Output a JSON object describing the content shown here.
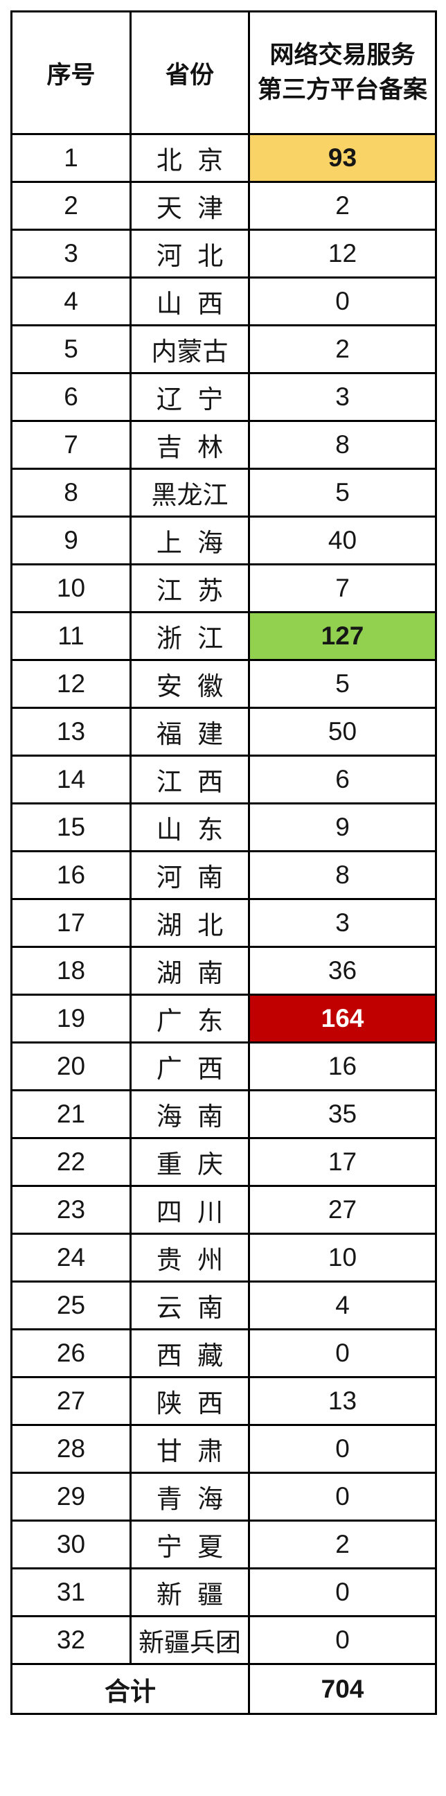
{
  "colors": {
    "yellow": "#FAD366",
    "green": "#92D050",
    "red": "#C00000",
    "red_text": "#FFFFFF",
    "border": "#000000",
    "text": "#161616"
  },
  "table": {
    "header": {
      "seq": "序号",
      "province": "省份",
      "value": "网络交易服务\n第三方平台备案"
    },
    "rows": [
      {
        "seq": "1",
        "province": "北 京",
        "value": "93",
        "highlight": "yellow"
      },
      {
        "seq": "2",
        "province": "天 津",
        "value": "2",
        "highlight": null
      },
      {
        "seq": "3",
        "province": "河 北",
        "value": "12",
        "highlight": null
      },
      {
        "seq": "4",
        "province": "山 西",
        "value": "0",
        "highlight": null
      },
      {
        "seq": "5",
        "province": "内蒙古",
        "value": "2",
        "highlight": null
      },
      {
        "seq": "6",
        "province": "辽 宁",
        "value": "3",
        "highlight": null
      },
      {
        "seq": "7",
        "province": "吉 林",
        "value": "8",
        "highlight": null
      },
      {
        "seq": "8",
        "province": "黑龙江",
        "value": "5",
        "highlight": null
      },
      {
        "seq": "9",
        "province": "上 海",
        "value": "40",
        "highlight": null
      },
      {
        "seq": "10",
        "province": "江 苏",
        "value": "7",
        "highlight": null
      },
      {
        "seq": "11",
        "province": "浙 江",
        "value": "127",
        "highlight": "green"
      },
      {
        "seq": "12",
        "province": "安 徽",
        "value": "5",
        "highlight": null
      },
      {
        "seq": "13",
        "province": "福 建",
        "value": "50",
        "highlight": null
      },
      {
        "seq": "14",
        "province": "江 西",
        "value": "6",
        "highlight": null
      },
      {
        "seq": "15",
        "province": "山 东",
        "value": "9",
        "highlight": null
      },
      {
        "seq": "16",
        "province": "河 南",
        "value": "8",
        "highlight": null
      },
      {
        "seq": "17",
        "province": "湖 北",
        "value": "3",
        "highlight": null
      },
      {
        "seq": "18",
        "province": "湖 南",
        "value": "36",
        "highlight": null
      },
      {
        "seq": "19",
        "province": "广 东",
        "value": "164",
        "highlight": "red"
      },
      {
        "seq": "20",
        "province": "广 西",
        "value": "16",
        "highlight": null
      },
      {
        "seq": "21",
        "province": "海 南",
        "value": "35",
        "highlight": null
      },
      {
        "seq": "22",
        "province": "重 庆",
        "value": "17",
        "highlight": null
      },
      {
        "seq": "23",
        "province": "四 川",
        "value": "27",
        "highlight": null
      },
      {
        "seq": "24",
        "province": "贵 州",
        "value": "10",
        "highlight": null
      },
      {
        "seq": "25",
        "province": "云 南",
        "value": "4",
        "highlight": null
      },
      {
        "seq": "26",
        "province": "西 藏",
        "value": "0",
        "highlight": null
      },
      {
        "seq": "27",
        "province": "陕 西",
        "value": "13",
        "highlight": null
      },
      {
        "seq": "28",
        "province": "甘 肃",
        "value": "0",
        "highlight": null
      },
      {
        "seq": "29",
        "province": "青 海",
        "value": "0",
        "highlight": null
      },
      {
        "seq": "30",
        "province": "宁 夏",
        "value": "2",
        "highlight": null
      },
      {
        "seq": "31",
        "province": "新 疆",
        "value": "0",
        "highlight": null
      },
      {
        "seq": "32",
        "province": "新疆兵团",
        "value": "0",
        "highlight": null
      }
    ],
    "footer": {
      "label": "合计",
      "value": "704"
    }
  },
  "chart_data": {
    "type": "table",
    "title": "网络交易服务第三方平台备案",
    "columns": [
      "序号",
      "省份",
      "网络交易服务第三方平台备案"
    ],
    "rows": [
      [
        1,
        "北京",
        93
      ],
      [
        2,
        "天津",
        2
      ],
      [
        3,
        "河北",
        12
      ],
      [
        4,
        "山西",
        0
      ],
      [
        5,
        "内蒙古",
        2
      ],
      [
        6,
        "辽宁",
        3
      ],
      [
        7,
        "吉林",
        8
      ],
      [
        8,
        "黑龙江",
        5
      ],
      [
        9,
        "上海",
        40
      ],
      [
        10,
        "江苏",
        7
      ],
      [
        11,
        "浙江",
        127
      ],
      [
        12,
        "安徽",
        5
      ],
      [
        13,
        "福建",
        50
      ],
      [
        14,
        "江西",
        6
      ],
      [
        15,
        "山东",
        9
      ],
      [
        16,
        "河南",
        8
      ],
      [
        17,
        "湖北",
        3
      ],
      [
        18,
        "湖南",
        36
      ],
      [
        19,
        "广东",
        164
      ],
      [
        20,
        "广西",
        16
      ],
      [
        21,
        "海南",
        35
      ],
      [
        22,
        "重庆",
        17
      ],
      [
        23,
        "四川",
        27
      ],
      [
        24,
        "贵州",
        10
      ],
      [
        25,
        "云南",
        4
      ],
      [
        26,
        "西藏",
        0
      ],
      [
        27,
        "陕西",
        13
      ],
      [
        28,
        "甘肃",
        0
      ],
      [
        29,
        "青海",
        0
      ],
      [
        30,
        "宁夏",
        2
      ],
      [
        31,
        "新疆",
        0
      ],
      [
        32,
        "新疆兵团",
        0
      ]
    ],
    "total_row": [
      "合计",
      704
    ],
    "highlighted_cells": [
      {
        "province": "北京",
        "value": 93,
        "bg": "#FAD366",
        "text": "#161616"
      },
      {
        "province": "浙江",
        "value": 127,
        "bg": "#92D050",
        "text": "#161616"
      },
      {
        "province": "广东",
        "value": 164,
        "bg": "#C00000",
        "text": "#FFFFFF"
      }
    ]
  }
}
